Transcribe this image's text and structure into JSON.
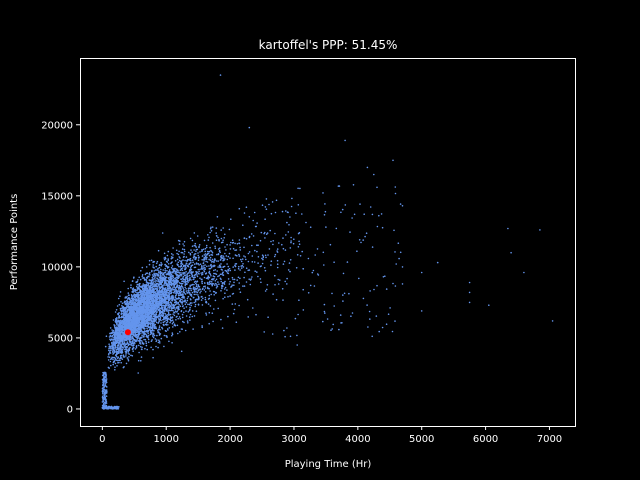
{
  "chart_data": {
    "type": "scatter",
    "title": "kartoffel's PPP: 51.45%",
    "xlabel": "Playing Time (Hr)",
    "ylabel": "Performance Points",
    "xlim": [
      -350,
      7400
    ],
    "ylim": [
      -1200,
      24700
    ],
    "xticks": [
      0,
      1000,
      2000,
      3000,
      4000,
      5000,
      6000,
      7000
    ],
    "yticks": [
      0,
      5000,
      10000,
      15000,
      20000
    ],
    "grid": false,
    "legend": "none",
    "colors": {
      "background": "#000000",
      "axes": "#ffffff",
      "population": "#6495ed",
      "highlight": "#ff0000"
    },
    "population_label": "",
    "highlight_point": {
      "x": 400,
      "y": 5400
    },
    "notable_points": [
      {
        "x": 1850,
        "y": 23500
      },
      {
        "x": 2300,
        "y": 19800
      },
      {
        "x": 3800,
        "y": 18900
      },
      {
        "x": 4550,
        "y": 17500
      },
      {
        "x": 4150,
        "y": 17000
      },
      {
        "x": 4250,
        "y": 16500
      },
      {
        "x": 4300,
        "y": 15600
      },
      {
        "x": 4700,
        "y": 14300
      },
      {
        "x": 3950,
        "y": 13700
      },
      {
        "x": 3500,
        "y": 12800
      },
      {
        "x": 5250,
        "y": 10300
      },
      {
        "x": 4600,
        "y": 10200
      },
      {
        "x": 4400,
        "y": 9300
      },
      {
        "x": 4700,
        "y": 8800
      },
      {
        "x": 5000,
        "y": 9600
      },
      {
        "x": 5750,
        "y": 8900
      },
      {
        "x": 5750,
        "y": 8200
      },
      {
        "x": 5750,
        "y": 7500
      },
      {
        "x": 6050,
        "y": 7300
      },
      {
        "x": 5000,
        "y": 6900
      },
      {
        "x": 6350,
        "y": 12700
      },
      {
        "x": 6850,
        "y": 12600
      },
      {
        "x": 6400,
        "y": 11000
      },
      {
        "x": 6600,
        "y": 9600
      },
      {
        "x": 7050,
        "y": 6200
      },
      {
        "x": 3050,
        "y": 4500
      },
      {
        "x": 4700,
        "y": 10000
      }
    ]
  }
}
